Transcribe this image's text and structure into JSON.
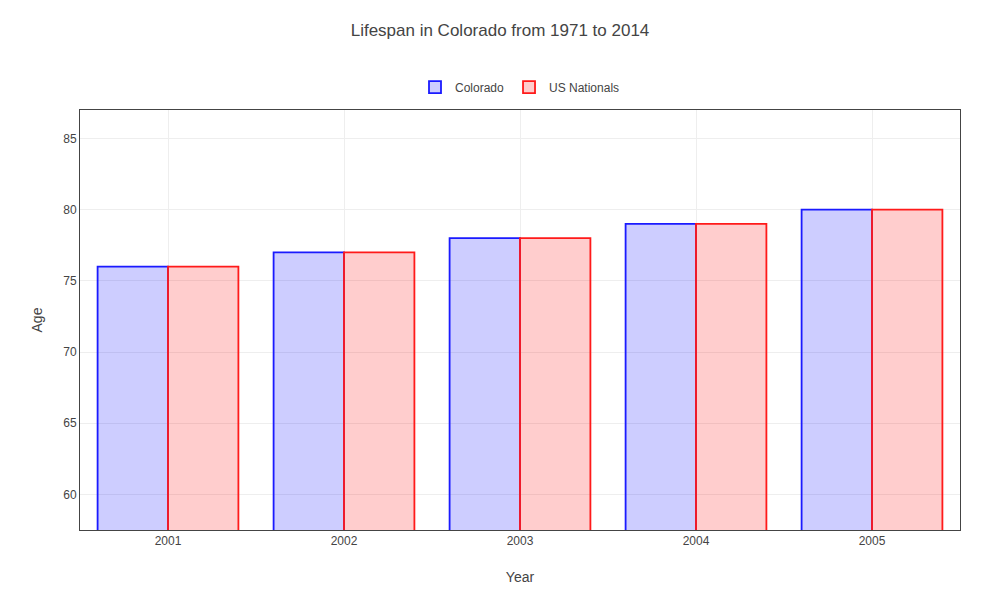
{
  "chart_data": {
    "type": "bar",
    "title": "Lifespan in Colorado from 1971 to 2014",
    "x_label": "Year",
    "y_label": "Age",
    "categories": [
      "2001",
      "2002",
      "2003",
      "2004",
      "2005"
    ],
    "series": [
      {
        "name": "Colorado",
        "color": "#1a1aff",
        "values": [
          76,
          77,
          78,
          79,
          80
        ]
      },
      {
        "name": "US Nationals",
        "color": "#ff1a1a",
        "values": [
          76,
          77,
          78,
          79,
          80
        ]
      }
    ],
    "ylim": [
      57.5,
      87
    ],
    "yticks": [
      60,
      65,
      70,
      75,
      80,
      85
    ],
    "grid": true,
    "legend": "top"
  }
}
